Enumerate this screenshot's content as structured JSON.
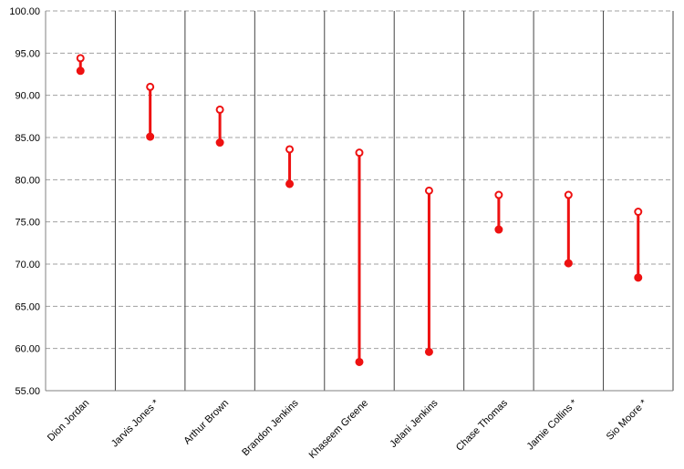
{
  "chart_data": {
    "type": "dumbbell",
    "title": "",
    "xlabel": "",
    "ylabel": "",
    "ylim": [
      55,
      100
    ],
    "yticks": [
      "55.00",
      "60.00",
      "65.00",
      "70.00",
      "75.00",
      "80.00",
      "85.00",
      "90.00",
      "95.00",
      "100.00"
    ],
    "grid": true,
    "legend": "none",
    "colors": {
      "series": "#ee1111",
      "grid": "#a0a0a0",
      "axis": "#808080",
      "divider": "#444444"
    },
    "categories": [
      "Dion Jordan",
      "Jarvis Jones *",
      "Arthur Brown",
      "Brandon Jenkins",
      "Khaseem Greene",
      "Jelani Jenkins",
      "Chase Thomas",
      "Jamie Collins *",
      "Sio Moore *"
    ],
    "high": [
      94.4,
      91.0,
      88.3,
      83.6,
      83.2,
      78.7,
      78.2,
      78.2,
      76.2
    ],
    "low": [
      92.9,
      85.1,
      84.4,
      79.5,
      58.4,
      59.6,
      74.1,
      70.1,
      68.4
    ]
  }
}
